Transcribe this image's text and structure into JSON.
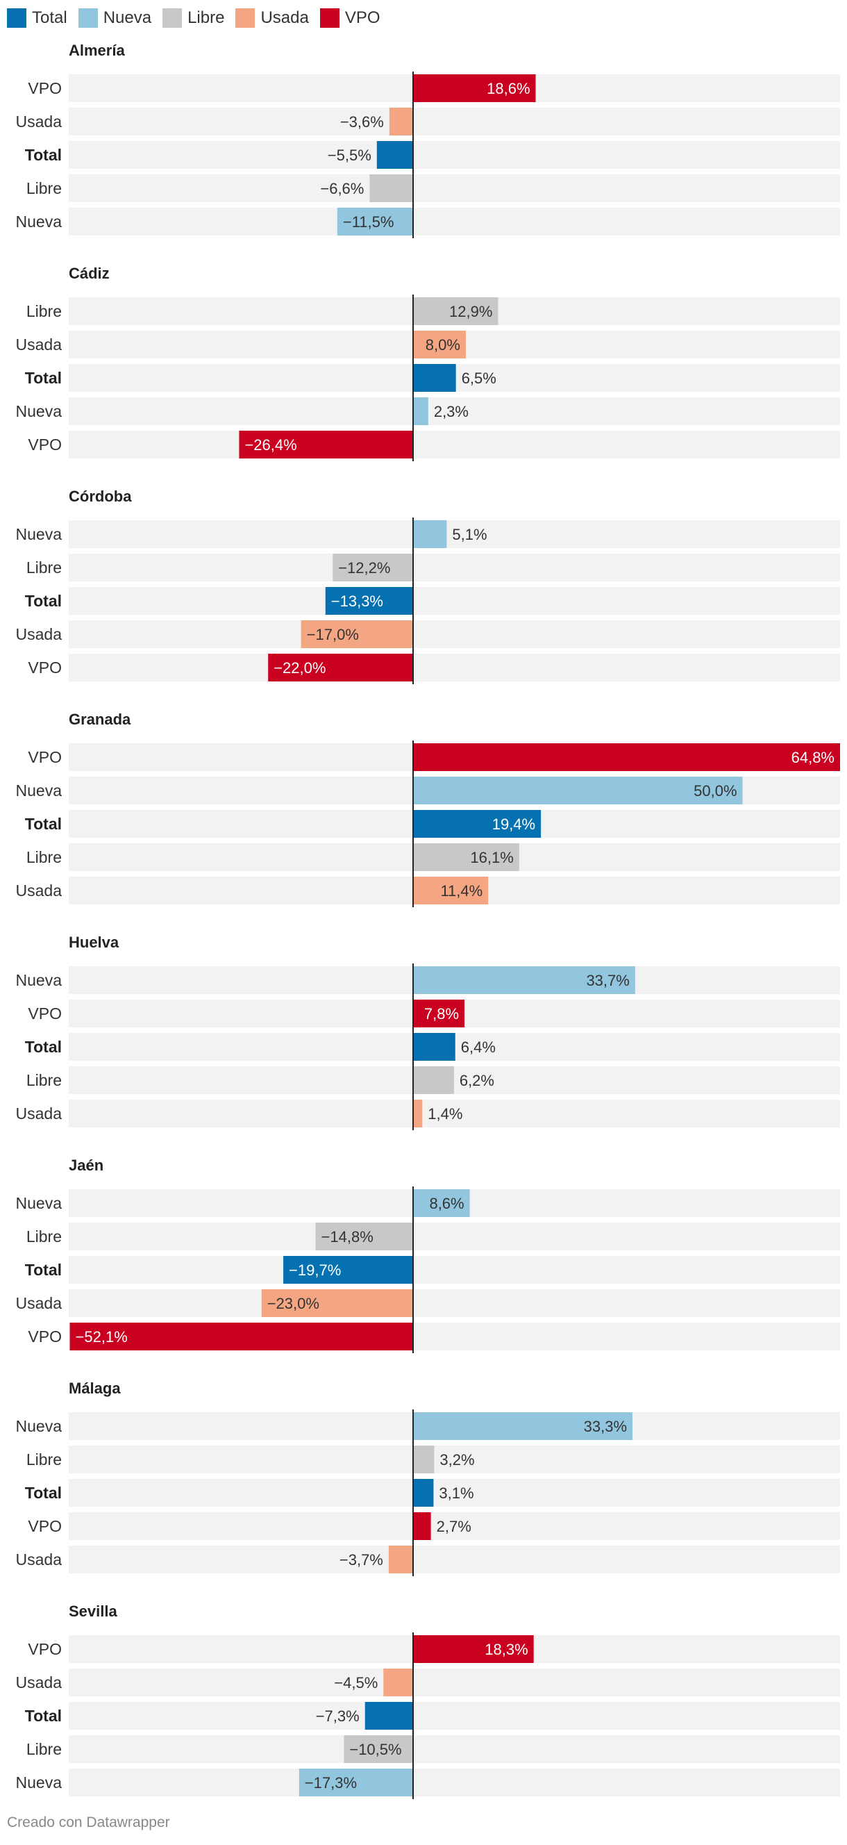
{
  "chart_data": {
    "type": "bar",
    "orientation": "horizontal",
    "unit": "%",
    "xlim": [
      -52.1,
      64.8
    ],
    "legend": [
      {
        "name": "Total",
        "color": "#0571b0"
      },
      {
        "name": "Nueva",
        "color": "#92c5de"
      },
      {
        "name": "Libre",
        "color": "#c8c8c8"
      },
      {
        "name": "Usada",
        "color": "#f4a582"
      },
      {
        "name": "VPO",
        "color": "#ca0020"
      }
    ],
    "groups": [
      {
        "title": "Almería",
        "rows": [
          {
            "label": "VPO",
            "value": 18.6,
            "text": "18,6%"
          },
          {
            "label": "Usada",
            "value": -3.6,
            "text": "−3,6%"
          },
          {
            "label": "Total",
            "value": -5.5,
            "text": "−5,5%"
          },
          {
            "label": "Libre",
            "value": -6.6,
            "text": "−6,6%"
          },
          {
            "label": "Nueva",
            "value": -11.5,
            "text": "−11,5%"
          }
        ]
      },
      {
        "title": "Cádiz",
        "rows": [
          {
            "label": "Libre",
            "value": 12.9,
            "text": "12,9%"
          },
          {
            "label": "Usada",
            "value": 8.0,
            "text": "8,0%"
          },
          {
            "label": "Total",
            "value": 6.5,
            "text": "6,5%"
          },
          {
            "label": "Nueva",
            "value": 2.3,
            "text": "2,3%"
          },
          {
            "label": "VPO",
            "value": -26.4,
            "text": "−26,4%"
          }
        ]
      },
      {
        "title": "Córdoba",
        "rows": [
          {
            "label": "Nueva",
            "value": 5.1,
            "text": "5,1%"
          },
          {
            "label": "Libre",
            "value": -12.2,
            "text": "−12,2%"
          },
          {
            "label": "Total",
            "value": -13.3,
            "text": "−13,3%"
          },
          {
            "label": "Usada",
            "value": -17.0,
            "text": "−17,0%"
          },
          {
            "label": "VPO",
            "value": -22.0,
            "text": "−22,0%"
          }
        ]
      },
      {
        "title": "Granada",
        "rows": [
          {
            "label": "VPO",
            "value": 64.8,
            "text": "64,8%"
          },
          {
            "label": "Nueva",
            "value": 50.0,
            "text": "50,0%"
          },
          {
            "label": "Total",
            "value": 19.4,
            "text": "19,4%"
          },
          {
            "label": "Libre",
            "value": 16.1,
            "text": "16,1%"
          },
          {
            "label": "Usada",
            "value": 11.4,
            "text": "11,4%"
          }
        ]
      },
      {
        "title": "Huelva",
        "rows": [
          {
            "label": "Nueva",
            "value": 33.7,
            "text": "33,7%"
          },
          {
            "label": "VPO",
            "value": 7.8,
            "text": "7,8%"
          },
          {
            "label": "Total",
            "value": 6.4,
            "text": "6,4%"
          },
          {
            "label": "Libre",
            "value": 6.2,
            "text": "6,2%"
          },
          {
            "label": "Usada",
            "value": 1.4,
            "text": "1,4%"
          }
        ]
      },
      {
        "title": "Jaén",
        "rows": [
          {
            "label": "Nueva",
            "value": 8.6,
            "text": "8,6%"
          },
          {
            "label": "Libre",
            "value": -14.8,
            "text": "−14,8%"
          },
          {
            "label": "Total",
            "value": -19.7,
            "text": "−19,7%"
          },
          {
            "label": "Usada",
            "value": -23.0,
            "text": "−23,0%"
          },
          {
            "label": "VPO",
            "value": -52.1,
            "text": "−52,1%"
          }
        ]
      },
      {
        "title": "Málaga",
        "rows": [
          {
            "label": "Nueva",
            "value": 33.3,
            "text": "33,3%"
          },
          {
            "label": "Libre",
            "value": 3.2,
            "text": "3,2%"
          },
          {
            "label": "Total",
            "value": 3.1,
            "text": "3,1%"
          },
          {
            "label": "VPO",
            "value": 2.7,
            "text": "2,7%"
          },
          {
            "label": "Usada",
            "value": -3.7,
            "text": "−3,7%"
          }
        ]
      },
      {
        "title": "Sevilla",
        "rows": [
          {
            "label": "VPO",
            "value": 18.3,
            "text": "18,3%"
          },
          {
            "label": "Usada",
            "value": -4.5,
            "text": "−4,5%"
          },
          {
            "label": "Total",
            "value": -7.3,
            "text": "−7,3%"
          },
          {
            "label": "Libre",
            "value": -10.5,
            "text": "−10,5%"
          },
          {
            "label": "Nueva",
            "value": -17.3,
            "text": "−17,3%"
          }
        ]
      }
    ]
  },
  "footer": "Creado con Datawrapper"
}
